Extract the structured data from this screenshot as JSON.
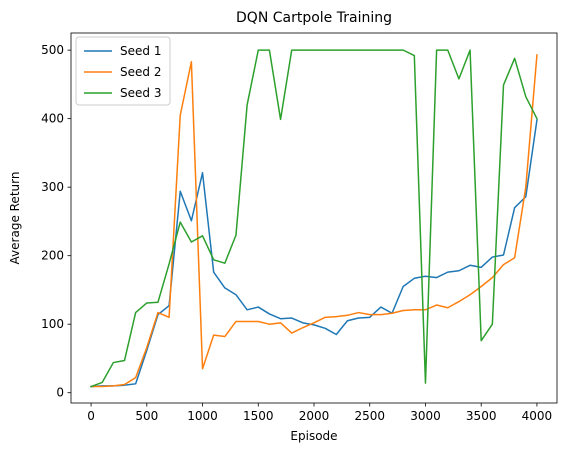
{
  "chart_data": {
    "type": "line",
    "title": "DQN Cartpole Training",
    "xlabel": "Episode",
    "ylabel": "Average Return",
    "xlim": [
      -180,
      4180
    ],
    "ylim": [
      -15,
      525
    ],
    "xticks": [
      0,
      500,
      1000,
      1500,
      2000,
      2500,
      3000,
      3500,
      4000
    ],
    "yticks": [
      0,
      100,
      200,
      300,
      400,
      500
    ],
    "grid": false,
    "legend": "top-left",
    "x": [
      0,
      100,
      200,
      300,
      400,
      500,
      600,
      700,
      800,
      900,
      1000,
      1100,
      1200,
      1300,
      1400,
      1500,
      1600,
      1700,
      1800,
      1900,
      2000,
      2100,
      2200,
      2300,
      2400,
      2500,
      2600,
      2700,
      2800,
      2900,
      3000,
      3100,
      3200,
      3300,
      3400,
      3500,
      3600,
      3700,
      3800,
      3900,
      4000
    ],
    "series": [
      {
        "name": "Seed 1",
        "color": "#1f77b4",
        "values": [
          9,
          10,
          10,
          11,
          13,
          62,
          114,
          127,
          294,
          251,
          321,
          176,
          153,
          143,
          121,
          125,
          115,
          108,
          109,
          102,
          99,
          94,
          85,
          105,
          109,
          110,
          125,
          116,
          155,
          167,
          170,
          168,
          176,
          178,
          186,
          183,
          198,
          201,
          270,
          286,
          398
        ]
      },
      {
        "name": "Seed 2",
        "color": "#ff7f0e",
        "values": [
          9,
          9,
          10,
          12,
          22,
          66,
          117,
          110,
          405,
          483,
          35,
          84,
          82,
          104,
          104,
          104,
          100,
          102,
          87,
          95,
          102,
          110,
          111,
          113,
          117,
          114,
          114,
          116,
          120,
          121,
          121,
          128,
          124,
          133,
          143,
          155,
          168,
          187,
          197,
          300,
          493
        ]
      },
      {
        "name": "Seed 3",
        "color": "#2ca02c",
        "values": [
          9,
          15,
          44,
          47,
          117,
          131,
          132,
          188,
          249,
          220,
          229,
          194,
          189,
          230,
          420,
          500,
          500,
          399,
          500,
          500,
          500,
          500,
          500,
          500,
          500,
          500,
          500,
          500,
          500,
          492,
          14,
          500,
          500,
          458,
          500,
          76,
          100,
          449,
          488,
          432,
          400
        ]
      }
    ]
  }
}
